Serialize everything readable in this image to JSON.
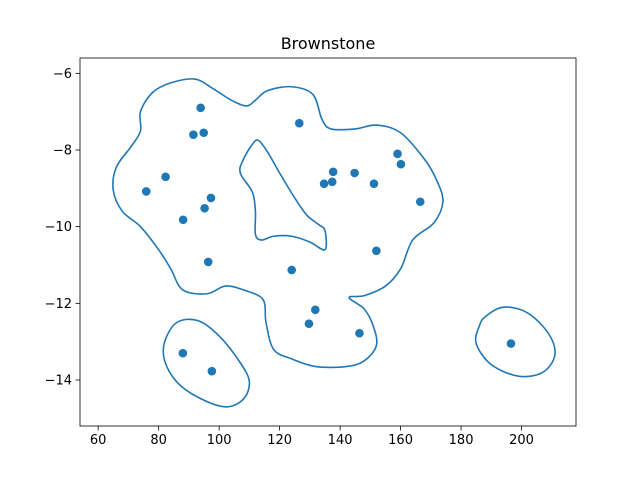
{
  "chart_data": {
    "type": "scatter",
    "title": "Brownstone",
    "xlabel": "",
    "ylabel": "",
    "xlim": [
      54,
      218
    ],
    "ylim": [
      -15.2,
      -5.6
    ],
    "x_ticks": [
      60,
      80,
      100,
      120,
      140,
      160,
      180,
      200
    ],
    "y_ticks": [
      -6,
      -8,
      -10,
      -12,
      -14
    ],
    "x_tick_labels": [
      "60",
      "80",
      "100",
      "120",
      "140",
      "160",
      "180",
      "200"
    ],
    "y_tick_labels": [
      "−6",
      "−8",
      "−10",
      "−12",
      "−14"
    ],
    "grid": false,
    "point_color": "#1f77b4",
    "contour_color": "#1f77b4",
    "points": [
      {
        "x": 93.9,
        "y": -6.9
      },
      {
        "x": 91.5,
        "y": -7.6
      },
      {
        "x": 94.9,
        "y": -7.55
      },
      {
        "x": 126.5,
        "y": -7.3
      },
      {
        "x": 75.9,
        "y": -9.08
      },
      {
        "x": 82.3,
        "y": -8.7
      },
      {
        "x": 97.3,
        "y": -9.25
      },
      {
        "x": 95.2,
        "y": -9.52
      },
      {
        "x": 88.1,
        "y": -9.82
      },
      {
        "x": 96.4,
        "y": -10.92
      },
      {
        "x": 137.7,
        "y": -8.57
      },
      {
        "x": 144.8,
        "y": -8.6
      },
      {
        "x": 134.7,
        "y": -8.88
      },
      {
        "x": 137.4,
        "y": -8.83
      },
      {
        "x": 151.2,
        "y": -8.88
      },
      {
        "x": 159.0,
        "y": -8.1
      },
      {
        "x": 160.1,
        "y": -8.37
      },
      {
        "x": 166.5,
        "y": -9.35
      },
      {
        "x": 152.0,
        "y": -10.63
      },
      {
        "x": 124.0,
        "y": -11.13
      },
      {
        "x": 131.8,
        "y": -12.17
      },
      {
        "x": 129.7,
        "y": -12.53
      },
      {
        "x": 146.4,
        "y": -12.78
      },
      {
        "x": 88.0,
        "y": -13.3
      },
      {
        "x": 97.6,
        "y": -13.77
      },
      {
        "x": 196.5,
        "y": -13.05
      }
    ],
    "contours": [
      {
        "name": "outer",
        "path": [
          [
            71,
            -7.9
          ],
          [
            74,
            -7.5
          ],
          [
            74,
            -7.0
          ],
          [
            78,
            -6.5
          ],
          [
            84,
            -6.25
          ],
          [
            92,
            -6.15
          ],
          [
            98,
            -6.4
          ],
          [
            104,
            -6.7
          ],
          [
            109,
            -6.85
          ],
          [
            112,
            -6.7
          ],
          [
            116,
            -6.45
          ],
          [
            124,
            -6.35
          ],
          [
            131,
            -6.55
          ],
          [
            134,
            -7.2
          ],
          [
            137,
            -7.45
          ],
          [
            145,
            -7.45
          ],
          [
            152,
            -7.35
          ],
          [
            160,
            -7.55
          ],
          [
            168,
            -8.25
          ],
          [
            172,
            -8.8
          ],
          [
            174,
            -9.35
          ],
          [
            171,
            -9.9
          ],
          [
            164,
            -10.35
          ],
          [
            160,
            -11.1
          ],
          [
            155,
            -11.55
          ],
          [
            148,
            -11.8
          ],
          [
            143,
            -11.85
          ],
          [
            148,
            -12.15
          ],
          [
            151,
            -12.6
          ],
          [
            152,
            -13.1
          ],
          [
            148,
            -13.5
          ],
          [
            142,
            -13.65
          ],
          [
            132,
            -13.65
          ],
          [
            124,
            -13.45
          ],
          [
            118,
            -13.2
          ],
          [
            115.5,
            -12.5
          ],
          [
            114.5,
            -11.9
          ],
          [
            108,
            -11.65
          ],
          [
            102,
            -11.55
          ],
          [
            96,
            -11.75
          ],
          [
            88,
            -11.65
          ],
          [
            84,
            -11.1
          ],
          [
            80,
            -10.6
          ],
          [
            74,
            -10.0
          ],
          [
            68,
            -9.6
          ],
          [
            65,
            -9.05
          ],
          [
            66,
            -8.45
          ],
          [
            71,
            -7.9
          ]
        ]
      },
      {
        "name": "inner-hole",
        "path": [
          [
            113,
            -7.75
          ],
          [
            116,
            -8.05
          ],
          [
            120,
            -8.6
          ],
          [
            125,
            -9.25
          ],
          [
            129,
            -9.7
          ],
          [
            133,
            -9.95
          ],
          [
            135,
            -10.1
          ],
          [
            135,
            -10.6
          ],
          [
            130,
            -10.4
          ],
          [
            124,
            -10.25
          ],
          [
            118,
            -10.25
          ],
          [
            114,
            -10.35
          ],
          [
            112,
            -10.2
          ],
          [
            112,
            -9.6
          ],
          [
            111,
            -9.1
          ],
          [
            107,
            -8.6
          ],
          [
            108,
            -8.25
          ],
          [
            111,
            -7.85
          ],
          [
            113,
            -7.75
          ]
        ]
      },
      {
        "name": "lower-left",
        "path": [
          [
            82,
            -13.0
          ],
          [
            86,
            -12.5
          ],
          [
            93,
            -12.45
          ],
          [
            100,
            -12.85
          ],
          [
            107,
            -13.55
          ],
          [
            110,
            -14.05
          ],
          [
            108,
            -14.5
          ],
          [
            102,
            -14.7
          ],
          [
            93,
            -14.45
          ],
          [
            86,
            -14.05
          ],
          [
            82,
            -13.5
          ],
          [
            82,
            -13.0
          ]
        ]
      },
      {
        "name": "right",
        "path": [
          [
            188,
            -12.35
          ],
          [
            194,
            -12.1
          ],
          [
            202,
            -12.25
          ],
          [
            209,
            -12.8
          ],
          [
            211,
            -13.35
          ],
          [
            207,
            -13.8
          ],
          [
            199,
            -13.9
          ],
          [
            190,
            -13.6
          ],
          [
            185,
            -13.05
          ],
          [
            186,
            -12.6
          ],
          [
            188,
            -12.35
          ]
        ]
      }
    ]
  }
}
